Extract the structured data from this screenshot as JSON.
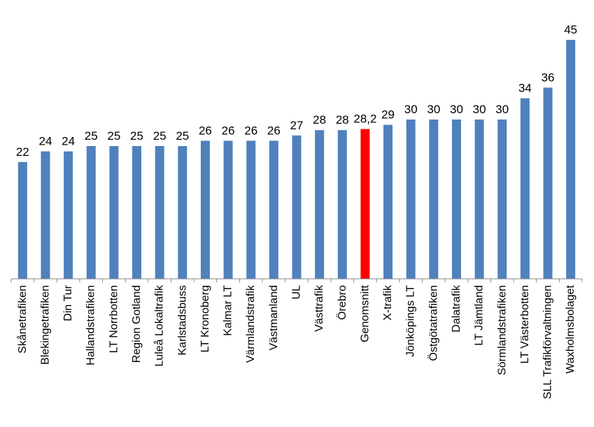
{
  "chart_data": {
    "type": "bar",
    "categories": [
      "Skånetrafiken",
      "Blekingetrafiken",
      "Din Tur",
      "Hallandstrafiken",
      "LT Norrbotten",
      "Region Gotland",
      "Luleå Lokaltrafik",
      "Karlstadsbuss",
      "LT Kronoberg",
      "Kalmar LT",
      "Värmlandstrafik",
      "Västmanland",
      "UL",
      "Västtrafik",
      "Örebro",
      "Genomsnitt",
      "X-trafik",
      "Jönköpings LT",
      "Östgötatrafiken",
      "Dalatrafik",
      "LT Jämtland",
      "Sörmlandstrafiken",
      "LT Västerbotten",
      "SLL Trafikförvaltningen",
      "Waxholmsbolaget"
    ],
    "values": [
      22,
      24,
      24,
      25,
      25,
      25,
      25,
      25,
      26,
      26,
      26,
      26,
      27,
      28,
      28,
      28.2,
      29,
      30,
      30,
      30,
      30,
      30,
      34,
      36,
      45
    ],
    "data_labels": [
      "22",
      "24",
      "24",
      "25",
      "25",
      "25",
      "25",
      "25",
      "26",
      "26",
      "26",
      "26",
      "27",
      "28",
      "28",
      "28,2",
      "29",
      "30",
      "30",
      "30",
      "30",
      "30",
      "34",
      "36",
      "45"
    ],
    "highlight_category": "Genomsnitt",
    "colors": {
      "bar": "#4f81bd",
      "highlight": "#ff0000",
      "axis": "#868686"
    },
    "ylim": [
      0,
      45
    ],
    "grid": false,
    "legend": "none",
    "title": "",
    "xlabel": "",
    "ylabel": ""
  }
}
